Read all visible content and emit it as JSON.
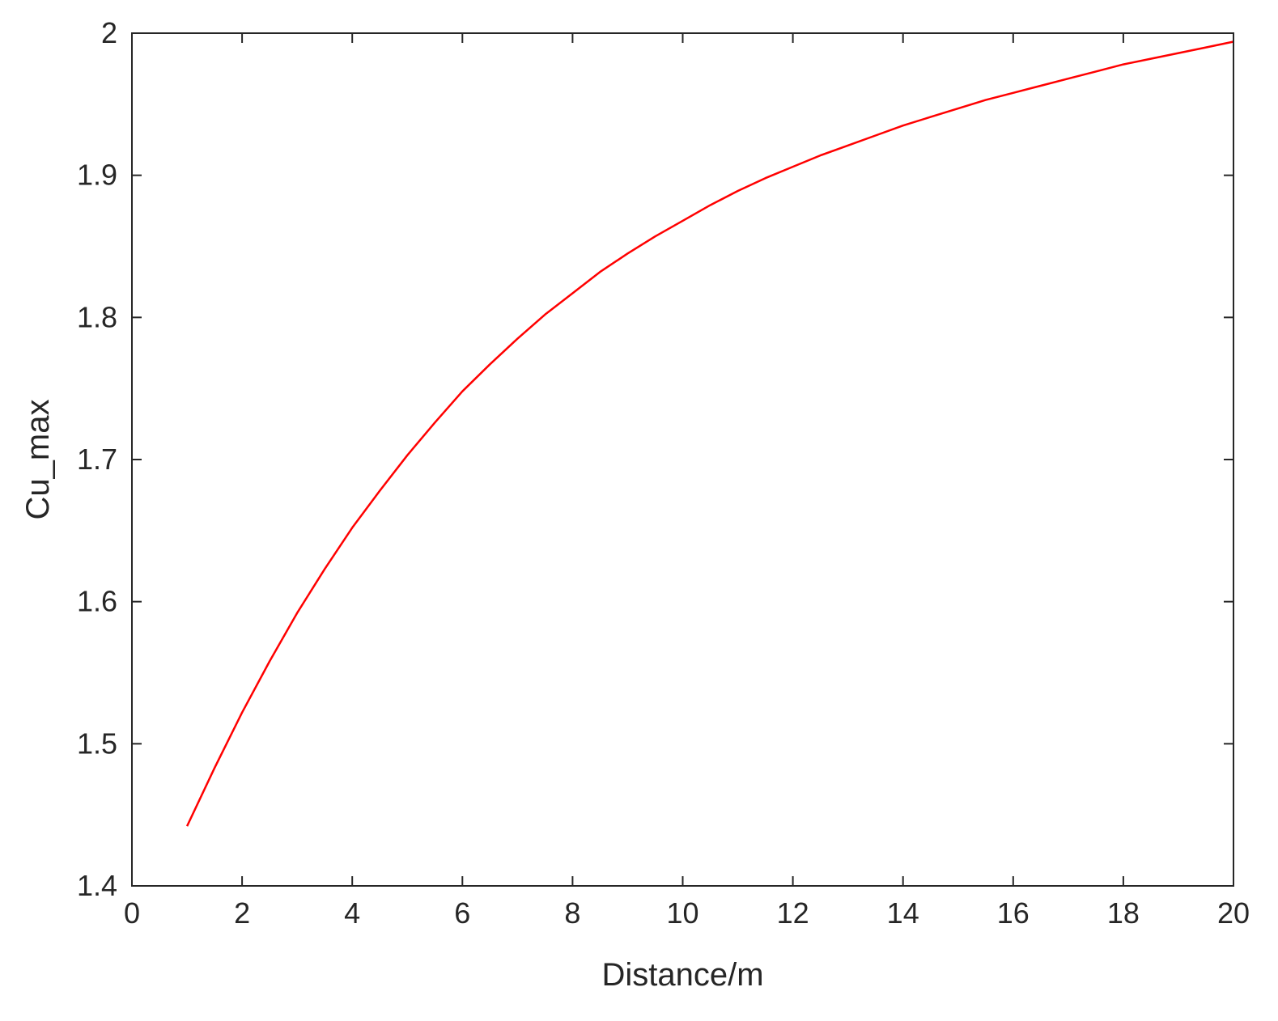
{
  "chart_data": {
    "type": "line",
    "xlabel": "Distance/m",
    "ylabel": "Cu_max",
    "xlim": [
      0,
      20
    ],
    "ylim": [
      1.4,
      2.0
    ],
    "x_ticks": [
      "0",
      "2",
      "4",
      "6",
      "8",
      "10",
      "12",
      "14",
      "16",
      "18",
      "20"
    ],
    "y_ticks": [
      "1.4",
      "1.5",
      "1.6",
      "1.7",
      "1.8",
      "1.9",
      "2"
    ],
    "grid": false,
    "series": [
      {
        "color": "#ff0000",
        "x": [
          1,
          1.5,
          2,
          2.5,
          3,
          3.5,
          4,
          4.5,
          5,
          5.5,
          6,
          6.5,
          7,
          7.5,
          8,
          8.5,
          9,
          9.5,
          10,
          10.5,
          11,
          11.5,
          12,
          12.5,
          13,
          13.5,
          14,
          14.5,
          15,
          15.5,
          16,
          16.5,
          17,
          17.5,
          18,
          18.5,
          19,
          19.5,
          20
        ],
        "y": [
          1.442,
          1.483,
          1.522,
          1.558,
          1.592,
          1.623,
          1.652,
          1.678,
          1.703,
          1.726,
          1.748,
          1.767,
          1.785,
          1.802,
          1.817,
          1.832,
          1.845,
          1.857,
          1.868,
          1.879,
          1.889,
          1.898,
          1.906,
          1.914,
          1.921,
          1.928,
          1.935,
          1.941,
          1.947,
          1.953,
          1.958,
          1.963,
          1.968,
          1.973,
          1.978,
          1.982,
          1.986,
          1.99,
          1.994
        ]
      }
    ]
  }
}
